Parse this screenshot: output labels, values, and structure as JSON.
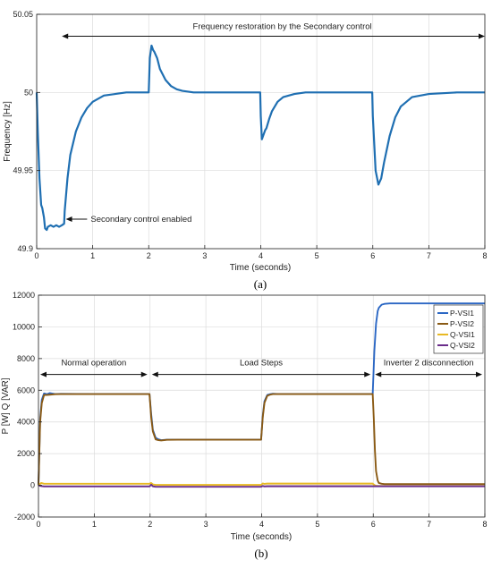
{
  "chart_data": [
    {
      "type": "line",
      "panel_label": "(a)",
      "xlabel": "Time (seconds)",
      "ylabel": "Frequency [Hz]",
      "xlim": [
        0,
        8
      ],
      "ylim": [
        49.9,
        50.05
      ],
      "xticks": [
        "0",
        "1",
        "2",
        "3",
        "4",
        "5",
        "6",
        "7",
        "8"
      ],
      "yticks": [
        "49.9",
        "49.95",
        "50",
        "50.05"
      ],
      "grid": true,
      "colors": {
        "line": "#1f6fb2"
      },
      "series": [
        {
          "x": [
            0,
            0.02,
            0.05,
            0.08,
            0.1,
            0.13,
            0.15,
            0.18,
            0.2,
            0.25,
            0.3,
            0.35,
            0.4,
            0.45,
            0.49,
            0.5,
            0.55,
            0.6,
            0.7,
            0.8,
            0.9,
            1.0,
            1.2,
            1.4,
            1.6,
            1.8,
            1.95,
            2.0,
            2.02,
            2.05,
            2.08,
            2.1,
            2.15,
            2.2,
            2.3,
            2.4,
            2.5,
            2.6,
            2.8,
            3.0,
            3.5,
            3.99,
            4.0,
            4.02,
            4.05,
            4.08,
            4.1,
            4.15,
            4.2,
            4.3,
            4.4,
            4.6,
            4.8,
            5.0,
            5.5,
            5.99,
            6.0,
            6.05,
            6.1,
            6.15,
            6.2,
            6.3,
            6.4,
            6.5,
            6.7,
            7.0,
            7.5,
            8.0
          ],
          "values": [
            50.0,
            49.975,
            49.945,
            49.928,
            49.926,
            49.92,
            49.913,
            49.912,
            49.914,
            49.915,
            49.914,
            49.915,
            49.914,
            49.915,
            49.916,
            49.924,
            49.945,
            49.96,
            49.975,
            49.984,
            49.99,
            49.994,
            49.998,
            49.999,
            50.0,
            50.0,
            50.0,
            50.0,
            50.022,
            50.03,
            50.027,
            50.026,
            50.022,
            50.015,
            50.008,
            50.004,
            50.002,
            50.001,
            50.0,
            50.0,
            50.0,
            50.0,
            49.985,
            49.97,
            49.973,
            49.976,
            49.977,
            49.983,
            49.988,
            49.994,
            49.997,
            49.999,
            50.0,
            50.0,
            50.0,
            50.0,
            49.985,
            49.95,
            49.941,
            49.945,
            49.955,
            49.972,
            49.984,
            49.991,
            49.997,
            49.999,
            50.0,
            50.0
          ]
        }
      ],
      "annotations": [
        {
          "text": "Frequency restoration by the Secondary control",
          "x_from": 0.45,
          "x_to": 8.0,
          "y": 50.04
        },
        {
          "text": "Secondary control enabled",
          "x_tail": 0.9,
          "x_head": 0.52,
          "y": 49.916
        }
      ]
    },
    {
      "type": "line",
      "panel_label": "(b)",
      "xlabel": "Time (seconds)",
      "ylabel": "P  [W]  Q  [VAR]",
      "xlim": [
        0,
        8
      ],
      "ylim": [
        -2000,
        12000
      ],
      "xticks": [
        "0",
        "1",
        "2",
        "3",
        "4",
        "5",
        "6",
        "7",
        "8"
      ],
      "yticks": [
        "-2000",
        "0",
        "2000",
        "4000",
        "6000",
        "8000",
        "10000",
        "12000"
      ],
      "grid": true,
      "legend_position": "top-right",
      "series": [
        {
          "name": "P-VSI1",
          "color": "#2b67c4",
          "x": [
            0,
            0.03,
            0.06,
            0.1,
            0.15,
            0.2,
            0.3,
            0.4,
            1.0,
            1.99,
            2.02,
            2.05,
            2.1,
            2.15,
            2.2,
            2.3,
            2.5,
            3.99,
            4.02,
            4.05,
            4.1,
            4.15,
            4.2,
            4.3,
            4.5,
            5.99,
            6.02,
            6.05,
            6.08,
            6.1,
            6.15,
            6.2,
            6.3,
            6.5,
            8.0
          ],
          "values": [
            0,
            4200,
            5400,
            5800,
            5750,
            5820,
            5760,
            5770,
            5760,
            5760,
            4500,
            3500,
            3000,
            2900,
            2850,
            2880,
            2880,
            2880,
            4400,
            5300,
            5700,
            5750,
            5780,
            5760,
            5760,
            5760,
            8500,
            10200,
            11000,
            11200,
            11400,
            11450,
            11480,
            11480,
            11480
          ]
        },
        {
          "name": "P-VSI2",
          "color": "#8a5a14",
          "x": [
            0,
            0.03,
            0.06,
            0.1,
            0.15,
            0.2,
            0.3,
            0.4,
            1.0,
            1.99,
            2.02,
            2.05,
            2.1,
            2.15,
            2.2,
            2.3,
            2.5,
            3.99,
            4.02,
            4.05,
            4.1,
            4.15,
            4.2,
            4.3,
            4.5,
            5.99,
            6.01,
            6.03,
            6.05,
            6.08,
            6.1,
            6.15,
            6.2,
            8.0
          ],
          "values": [
            0,
            4000,
            5200,
            5700,
            5700,
            5720,
            5750,
            5760,
            5760,
            5760,
            4300,
            3400,
            2900,
            2850,
            2830,
            2870,
            2880,
            2880,
            4300,
            5200,
            5650,
            5720,
            5760,
            5760,
            5760,
            5760,
            4200,
            2200,
            900,
            300,
            150,
            100,
            80,
            80
          ]
        },
        {
          "name": "Q-VSI1",
          "color": "#e8b923",
          "x": [
            0,
            0.05,
            0.1,
            1.99,
            2.02,
            2.05,
            2.1,
            3.99,
            4.02,
            4.05,
            4.1,
            5.99,
            6.02,
            6.05,
            6.1,
            8.0
          ],
          "values": [
            0,
            150,
            100,
            100,
            150,
            60,
            30,
            30,
            120,
            90,
            110,
            110,
            20,
            -30,
            -40,
            -40
          ]
        },
        {
          "name": "Q-VSI2",
          "color": "#6a2d8a",
          "x": [
            0,
            0.05,
            0.1,
            1.99,
            2.02,
            2.05,
            2.1,
            3.99,
            4.02,
            4.05,
            4.1,
            5.99,
            6.02,
            6.05,
            6.1,
            8.0
          ],
          "values": [
            0,
            -50,
            -70,
            -70,
            40,
            -60,
            -90,
            -90,
            -40,
            -70,
            -60,
            -60,
            -60,
            -60,
            -60,
            -60
          ]
        }
      ],
      "annotations": [
        {
          "text": "Normal operation",
          "x_from": 0.0,
          "x_to": 2.0,
          "y": 7000
        },
        {
          "text": "Load Steps",
          "x_from": 2.0,
          "x_to": 6.0,
          "y": 7000
        },
        {
          "text": "Inverter 2 disconnection",
          "x_from": 6.0,
          "x_to": 8.0,
          "y": 7000
        }
      ]
    }
  ]
}
